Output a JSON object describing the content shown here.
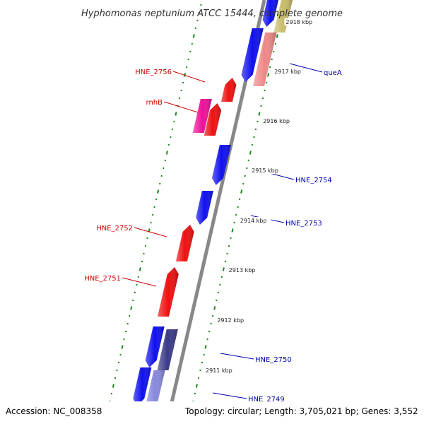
{
  "title": "Hyphomonas neptunium ATCC 15444, complete genome",
  "colors": {
    "backbone": "#888888",
    "tick": "#1a8a1a",
    "forward_label": "#cc0000",
    "reverse_label": "#0000b0",
    "gene_red": "#ee1111",
    "gene_blue": "#1010ee",
    "gene_magenta": "#ee1199",
    "gene_salmon": "#ee8888",
    "gene_olive": "#c8bc6a",
    "gene_navy": "#3a3a88",
    "gene_lavender": "#8888dd"
  },
  "kbp_ticks": [
    "2918 kbp",
    "2917 kbp",
    "2916 kbp",
    "2915 kbp",
    "2914 kbp",
    "2913 kbp",
    "2912 kbp",
    "2911 kbp"
  ],
  "forward_labels": [
    "HNE_2756",
    "rnhB",
    "HNE_2752",
    "HNE_2751"
  ],
  "reverse_labels": [
    "queA",
    "HNE_2754",
    "HNE_2753",
    "HNE_2750",
    "HNE_2749"
  ],
  "footer": {
    "accession": "Accession: NC_008358",
    "summary": "Topology: circular; Length: 3,705,021 bp; Genes: 3,552"
  }
}
